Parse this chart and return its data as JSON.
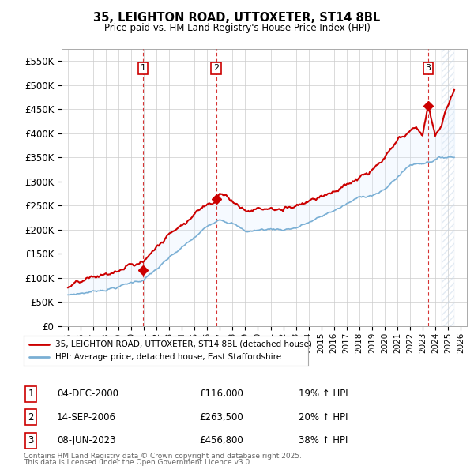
{
  "title": "35, LEIGHTON ROAD, UTTOXETER, ST14 8BL",
  "subtitle": "Price paid vs. HM Land Registry's House Price Index (HPI)",
  "ylim": [
    0,
    575000
  ],
  "xlim": [
    1994.5,
    2026.5
  ],
  "yticks": [
    0,
    50000,
    100000,
    150000,
    200000,
    250000,
    300000,
    350000,
    400000,
    450000,
    500000,
    550000
  ],
  "ytick_labels": [
    "£0",
    "£50K",
    "£100K",
    "£150K",
    "£200K",
    "£250K",
    "£300K",
    "£350K",
    "£400K",
    "£450K",
    "£500K",
    "£550K"
  ],
  "xticks": [
    1995,
    1996,
    1997,
    1998,
    1999,
    2000,
    2001,
    2002,
    2003,
    2004,
    2005,
    2006,
    2007,
    2008,
    2009,
    2010,
    2011,
    2012,
    2013,
    2014,
    2015,
    2016,
    2017,
    2018,
    2019,
    2020,
    2021,
    2022,
    2023,
    2024,
    2025,
    2026
  ],
  "transactions": [
    {
      "label": "1",
      "date": 2000.92,
      "price": 116000,
      "pct": "19%",
      "date_str": "04-DEC-2000",
      "price_str": "£116,000"
    },
    {
      "label": "2",
      "date": 2006.71,
      "price": 263500,
      "pct": "20%",
      "date_str": "14-SEP-2006",
      "price_str": "£263,500"
    },
    {
      "label": "3",
      "date": 2023.44,
      "price": 456800,
      "pct": "38%",
      "date_str": "08-JUN-2023",
      "price_str": "£456,800"
    }
  ],
  "legend_line1": "35, LEIGHTON ROAD, UTTOXETER, ST14 8BL (detached house)",
  "legend_line2": "HPI: Average price, detached house, East Staffordshire",
  "footer1": "Contains HM Land Registry data © Crown copyright and database right 2025.",
  "footer2": "This data is licensed under the Open Government Licence v3.0.",
  "line_color_red": "#cc0000",
  "line_color_blue": "#7aafd4",
  "fill_color": "#ddeeff",
  "bg_color": "#ffffff",
  "grid_color": "#cccccc",
  "vline_color": "#cc0000",
  "table_border_color": "#cc0000",
  "hatch_color": "#c8d8e8"
}
